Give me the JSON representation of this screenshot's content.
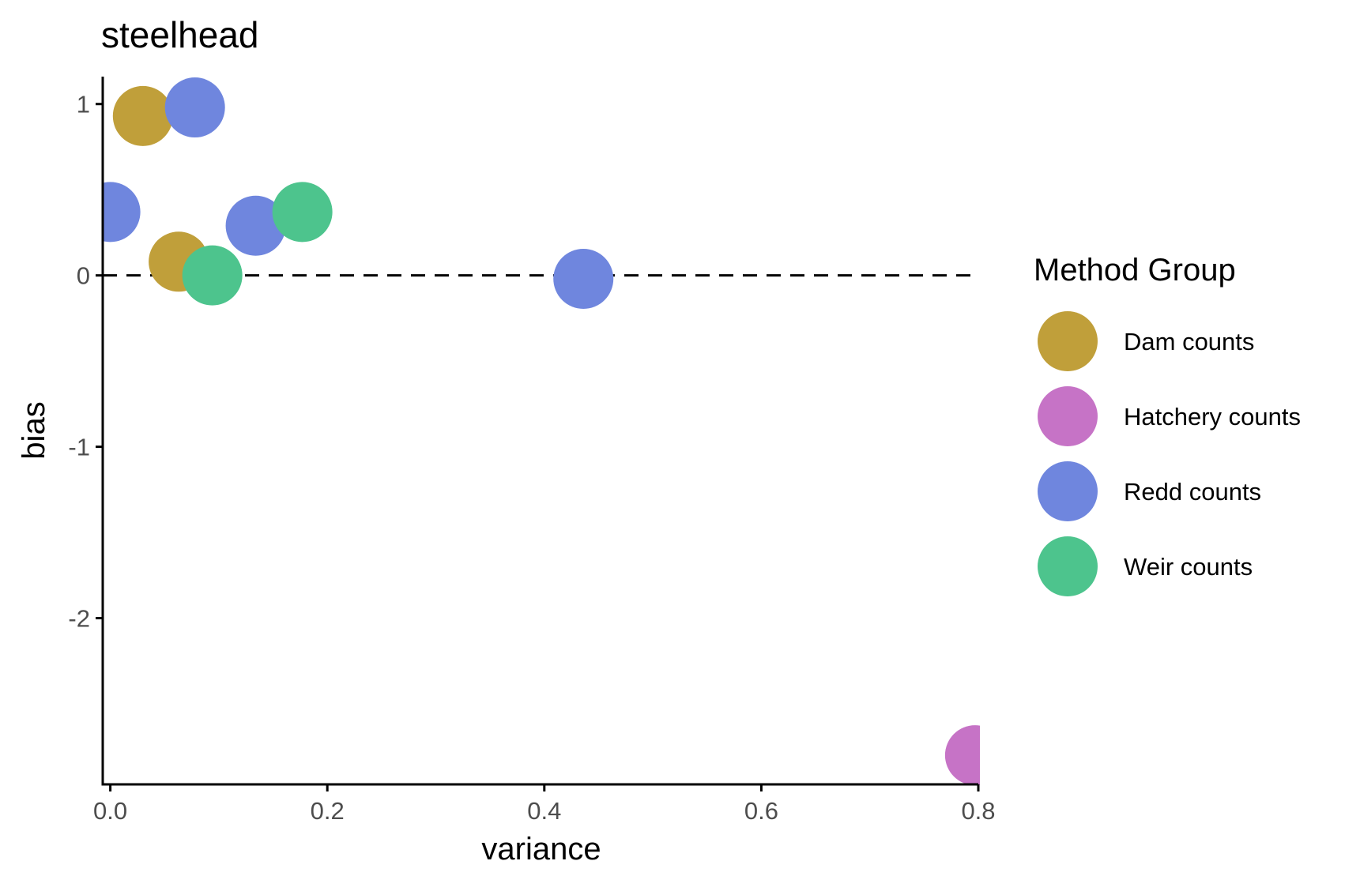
{
  "chart_data": {
    "type": "scatter",
    "title": "steelhead",
    "xlabel": "variance",
    "ylabel": "bias",
    "xlim": [
      -0.007,
      0.8
    ],
    "ylim": [
      -2.97,
      1.16
    ],
    "x_ticks": [
      0.0,
      0.2,
      0.4,
      0.6,
      0.8
    ],
    "x_tick_labels": [
      "0.0",
      "0.2",
      "0.4",
      "0.6",
      "0.8"
    ],
    "y_ticks": [
      1,
      0,
      -1,
      -2
    ],
    "y_tick_labels": [
      "1",
      "0",
      "-1",
      "-2"
    ],
    "reference_line": {
      "y": 0,
      "style": "dashed"
    },
    "grid": false,
    "legend": {
      "title": "Method Group",
      "placement": "right",
      "entries": [
        {
          "label": "Dam counts",
          "color": "#C09F3A"
        },
        {
          "label": "Hatchery counts",
          "color": "#C673C6"
        },
        {
          "label": "Redd counts",
          "color": "#6F86DE"
        },
        {
          "label": "Weir counts",
          "color": "#4DC48D"
        }
      ]
    },
    "series": [
      {
        "name": "Dam counts",
        "color": "#C09F3A",
        "points": [
          {
            "x": 0.03,
            "y": 0.93
          },
          {
            "x": 0.063,
            "y": 0.08
          }
        ]
      },
      {
        "name": "Hatchery counts",
        "color": "#C673C6",
        "points": [
          {
            "x": 0.797,
            "y": -2.8
          }
        ]
      },
      {
        "name": "Redd counts",
        "color": "#6F86DE",
        "points": [
          {
            "x": 0.078,
            "y": 0.98
          },
          {
            "x": 0.0,
            "y": 0.37
          },
          {
            "x": 0.134,
            "y": 0.29
          },
          {
            "x": 0.436,
            "y": -0.02
          }
        ]
      },
      {
        "name": "Weir counts",
        "color": "#4DC48D",
        "points": [
          {
            "x": 0.177,
            "y": 0.37
          },
          {
            "x": 0.094,
            "y": 0.0
          }
        ]
      }
    ]
  }
}
